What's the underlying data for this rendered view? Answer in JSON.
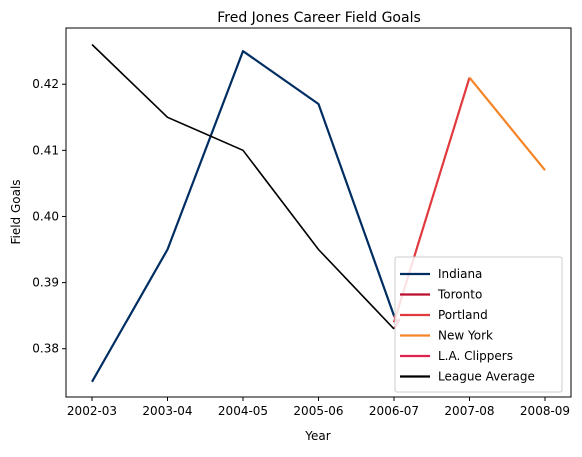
{
  "chart_data": {
    "type": "line",
    "title": "Fred Jones  Career Field Goals",
    "xlabel": "Year",
    "ylabel": "Field Goals",
    "categories": [
      "2002-03",
      "2003-04",
      "2004-05",
      "2005-06",
      "2006-07",
      "2007-08",
      "2008-09"
    ],
    "ylim": [
      0.3727,
      0.4285
    ],
    "yticks": [
      0.38,
      0.39,
      0.4,
      0.41,
      0.42
    ],
    "ytick_labels": [
      "0.38",
      "0.39",
      "0.40",
      "0.41",
      "0.42"
    ],
    "grid": false,
    "legend_position": "lower-right",
    "series": [
      {
        "name": "Indiana",
        "color": "#002D62",
        "points": [
          [
            0,
            0.375
          ],
          [
            1,
            0.395
          ],
          [
            2,
            0.425
          ],
          [
            3,
            0.417
          ],
          [
            4,
            0.385
          ]
        ]
      },
      {
        "name": "Toronto",
        "color": "#BA0C2F",
        "points": [
          [
            4,
            0.385
          ],
          [
            4.05,
            0.384
          ]
        ]
      },
      {
        "name": "Portland",
        "color": "#E03A3E",
        "points": [
          [
            4,
            0.384
          ],
          [
            5,
            0.421
          ]
        ]
      },
      {
        "name": "New York",
        "color": "#F58426",
        "points": [
          [
            5,
            0.421
          ],
          [
            6,
            0.407
          ]
        ]
      },
      {
        "name": "L.A. Clippers",
        "color": "#E0234E",
        "points": [
          [
            4,
            0.383
          ],
          [
            4.08,
            0.3845
          ]
        ]
      },
      {
        "name": "League Average",
        "color": "#000000",
        "points": [
          [
            0,
            0.426
          ],
          [
            1,
            0.415
          ],
          [
            2,
            0.41
          ],
          [
            3,
            0.395
          ],
          [
            4,
            0.383
          ]
        ]
      }
    ]
  }
}
